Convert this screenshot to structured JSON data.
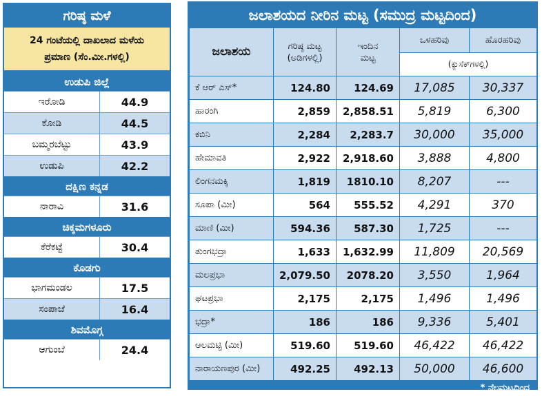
{
  "rainfall": {
    "title": "ಗರಿಷ್ಠ ಮಳೆ",
    "subtitle_line1": "24 ಗಂಟೆಯಲ್ಲಿ ದಾಖಲಾದ ಮಳೆಯ",
    "subtitle_line2": "ಪ್ರಮಾಣ (ಸೆಂ.ಮೀ.ಗಳಲ್ಲಿ)",
    "districts": [
      {
        "name": "ಉಡುಪಿ ಜಿಲ್ಲೆ",
        "places": [
          {
            "name": "ಇರೋಡಿ",
            "value": "44.9"
          },
          {
            "name": "ಕೋಡಿ",
            "value": "44.5"
          },
          {
            "name": "ಬಮ್ಮರಬೆಟ್ಟು",
            "value": "43.9"
          },
          {
            "name": "ಉಡುಪಿ",
            "value": "42.2"
          }
        ]
      },
      {
        "name": "ದಕ್ಷಿಣ ಕನ್ನಡ",
        "places": [
          {
            "name": "ನಾರಾವಿ",
            "value": "31.6"
          }
        ]
      },
      {
        "name": "ಚಿಕ್ಕಮಗಳೂರು",
        "places": [
          {
            "name": "ಕೆರೆಕಟ್ಟೆ",
            "value": "30.4"
          }
        ]
      },
      {
        "name": "ಕೊಡಗು",
        "places": [
          {
            "name": "ಭಾಗಮಂಡಲ",
            "value": "17.5"
          },
          {
            "name": "ಸಂಪಾಜೆ",
            "value": "16.4"
          }
        ]
      },
      {
        "name": "ಶಿವಮೊಗ್ಗ",
        "places": [
          {
            "name": "ಆಗುಂಬೆ",
            "value": "24.4"
          }
        ]
      }
    ]
  },
  "reservoirs": {
    "title": "ಜಲಾಶಯದ ನೀರಿನ ಮಟ್ಟ (ಸಮುದ್ರ ಮಟ್ಟದಿಂದ)",
    "headers": {
      "name": "ಜಲಾಶಯ",
      "max_level_l1": "ಗರಿಷ್ಠ ಮಟ್ಟ",
      "max_level_l2": "(ಅಡಿಗಳಲ್ಲಿ)",
      "today_l1": "ಇಂದಿನ",
      "today_l2": "ಮಟ್ಟ",
      "inflow": "ಒಳಹರಿವು",
      "outflow": "ಹೊರಹರಿವು",
      "flow_units": "(ಕ್ಯುಸೆಕ್‌ಗಳಲ್ಲಿ)"
    },
    "rows": [
      {
        "name": "ಕೆ ಆರ್ ಎಸ್*",
        "max": "124.80",
        "today": "124.69",
        "inflow": "17,085",
        "outflow": "30,337"
      },
      {
        "name": "ಹಾರಂಗಿ",
        "max": "2,859",
        "today": "2,858.51",
        "inflow": "5,819",
        "outflow": "6,300"
      },
      {
        "name": "ಕಬಿನಿ",
        "max": "2,284",
        "today": "2,283.7",
        "inflow": "30,000",
        "outflow": "35,000"
      },
      {
        "name": "ಹೇಮಾವತಿ",
        "max": "2,922",
        "today": "2,918.60",
        "inflow": "3,888",
        "outflow": "4,800"
      },
      {
        "name": "ಲಿಂಗನಮಕ್ಕಿ",
        "max": "1,819",
        "today": "1810.10",
        "inflow": "8,207",
        "outflow": "---"
      },
      {
        "name": "ಸೂಪಾ (ಮೀ)",
        "max": "564",
        "today": "555.52",
        "inflow": "4,291",
        "outflow": "370"
      },
      {
        "name": "ಮಾಣಿ (ಮೀ)",
        "max": "594.36",
        "today": "587.30",
        "inflow": "1,725",
        "outflow": "---"
      },
      {
        "name": "ತುಂಗಭದ್ರಾ",
        "max": "1,633",
        "today": "1,632.99",
        "inflow": "11,809",
        "outflow": "20,569"
      },
      {
        "name": "ಮಲಪ್ರಭಾ",
        "max": "2,079.50",
        "today": "2078.20",
        "inflow": "3,550",
        "outflow": "1,964"
      },
      {
        "name": "ಘಟಪ್ರಭಾ",
        "max": "2,175",
        "today": "2,175",
        "inflow": "1,496",
        "outflow": "1,496"
      },
      {
        "name": "ಭದ್ರಾ*",
        "max": "186",
        "today": "186",
        "inflow": "9,336",
        "outflow": "5,401"
      },
      {
        "name": "ಆಲಮಟ್ಟಿ (ಮೀ)",
        "max": "519.60",
        "today": "519.60",
        "inflow": "46,422",
        "outflow": "46,422"
      },
      {
        "name": "ನಾರಾಯಣಪುರ (ಮೀ)",
        "max": "492.25",
        "today": "492.13",
        "inflow": "50,000",
        "outflow": "46,600"
      }
    ],
    "footnote": "* ನೆಲಮಟ್ಟದಿಂದ"
  },
  "colors": {
    "accent": "#2c7bb6",
    "shade": "#c9dcef",
    "subtitle_bg": "#f6e6a2"
  }
}
